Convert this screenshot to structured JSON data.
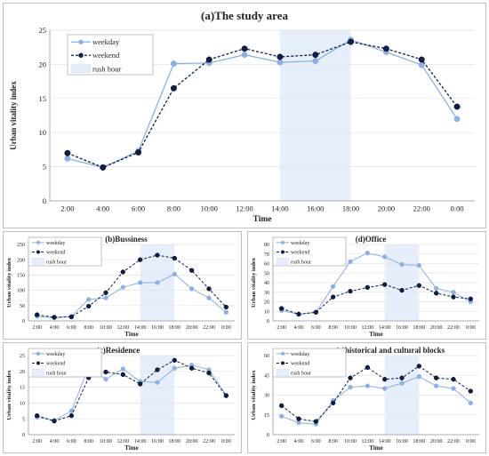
{
  "chart_data": [
    {
      "id": "a",
      "type": "line",
      "title": "(a)The study area",
      "xlabel": "Time",
      "ylabel": "Urban vitality index",
      "categories": [
        "2:00",
        "4:00",
        "6:00",
        "8:00",
        "10:00",
        "12:00",
        "14:00",
        "16:00",
        "18:00",
        "20:00",
        "22:00",
        "0:00"
      ],
      "yticks": [
        "0",
        "5",
        "10",
        "15",
        "20",
        "25"
      ],
      "ylim": [
        0,
        25
      ],
      "rush_hours": [
        [
          6.5,
          8.5
        ],
        [
          17.5,
          19.5
        ]
      ],
      "legend_position": "top-left",
      "rush_label": "rush hour",
      "grid": true,
      "series": [
        {
          "name": "weekday",
          "values": [
            6.2,
            4.9,
            7.3,
            20.1,
            20.2,
            21.4,
            20.3,
            20.5,
            23.6,
            21.8,
            19.9,
            12.0
          ]
        },
        {
          "name": "weekend",
          "values": [
            7.0,
            4.9,
            7.1,
            16.5,
            20.7,
            22.3,
            21.1,
            21.4,
            23.3,
            22.3,
            20.7,
            13.8
          ]
        }
      ]
    },
    {
      "id": "b",
      "type": "line",
      "title": "(b)Bussiness",
      "xlabel": "Time",
      "ylabel": "Urban vitality index",
      "categories": [
        "2:00",
        "4:00",
        "6:00",
        "8:00",
        "10:00",
        "12:00",
        "14:00",
        "16:00",
        "18:00",
        "20:00",
        "22:00",
        "0:00"
      ],
      "yticks": [
        "0",
        "50",
        "100",
        "150",
        "200",
        "250"
      ],
      "ylim": [
        0,
        250
      ],
      "rush_hours": [
        [
          6.5,
          8.5
        ],
        [
          17.5,
          19.5
        ]
      ],
      "legend_position": "top-left",
      "rush_label": "rush hour",
      "grid": true,
      "series": [
        {
          "name": "weekday",
          "values": [
            15,
            10,
            15,
            70,
            75,
            110,
            125,
            125,
            153,
            105,
            75,
            28
          ]
        },
        {
          "name": "weekend",
          "values": [
            20,
            12,
            13,
            48,
            92,
            160,
            200,
            215,
            205,
            165,
            105,
            45
          ]
        }
      ]
    },
    {
      "id": "d",
      "type": "line",
      "title": "(d)Office",
      "xlabel": "Time",
      "ylabel": "Urban vitality index",
      "categories": [
        "2:00",
        "4:00",
        "6:00",
        "8:00",
        "10:00",
        "12:00",
        "14:00",
        "16:00",
        "18:00",
        "20:00",
        "22:00",
        "0:00"
      ],
      "yticks": [
        "0",
        "10",
        "20",
        "30",
        "40",
        "50",
        "60",
        "70",
        "80"
      ],
      "ylim": [
        0,
        80
      ],
      "rush_hours": [
        [
          6.5,
          8.5
        ],
        [
          17.5,
          19.5
        ]
      ],
      "legend_position": "top-left",
      "rush_label": "rush hour",
      "grid": true,
      "series": [
        {
          "name": "weekday",
          "values": [
            11,
            7,
            9,
            36,
            62,
            71,
            67,
            59,
            58,
            34,
            30,
            20
          ]
        },
        {
          "name": "weekend",
          "values": [
            13,
            7,
            9,
            25,
            31,
            35,
            38,
            32,
            37,
            29,
            25,
            23
          ]
        }
      ]
    },
    {
      "id": "c",
      "type": "line",
      "title": "(c)Residence",
      "xlabel": "Time",
      "ylabel": "Urban vitality index",
      "categories": [
        "2:00",
        "4:00",
        "6:00",
        "8:00",
        "10:00",
        "12:00",
        "14:00",
        "16:00",
        "18:00",
        "20:00",
        "22:00",
        "0:00"
      ],
      "yticks": [
        "0",
        "5",
        "10",
        "15",
        "20",
        "25"
      ],
      "ylim": [
        0,
        25
      ],
      "rush_hours": [
        [
          6.5,
          8.5
        ],
        [
          17.5,
          19.5
        ]
      ],
      "legend_position": "top-left",
      "rush_label": "rush hour",
      "grid": true,
      "series": [
        {
          "name": "weekday",
          "values": [
            5.5,
            4.5,
            7.5,
            21.3,
            17.5,
            20.8,
            16.8,
            16.5,
            21.0,
            22.0,
            20.5,
            12.5
          ]
        },
        {
          "name": "weekend",
          "values": [
            6.0,
            4.3,
            6.0,
            18.0,
            19.8,
            19.0,
            16.0,
            20.5,
            23.5,
            21.0,
            19.5,
            12.3
          ]
        }
      ]
    },
    {
      "id": "e",
      "type": "line",
      "title": "(e)historical and cultural blocks",
      "xlabel": "Time",
      "ylabel": "Urban vitality index",
      "categories": [
        "2:00",
        "4:00",
        "6:00",
        "8:00",
        "10:00",
        "12:00",
        "14:00",
        "16:00",
        "18:00",
        "20:00",
        "22:00",
        "0:00"
      ],
      "yticks": [
        "0",
        "15",
        "30",
        "45",
        "60"
      ],
      "ylim": [
        0,
        60
      ],
      "rush_hours": [
        [
          6.5,
          8.5
        ],
        [
          17.5,
          19.5
        ]
      ],
      "legend_position": "top-left",
      "rush_label": "rush hour",
      "grid": true,
      "series": [
        {
          "name": "weekday",
          "values": [
            14,
            9,
            8,
            26,
            36,
            37,
            35,
            39,
            44,
            37,
            35,
            24
          ]
        },
        {
          "name": "weekend",
          "values": [
            22,
            12,
            10,
            24,
            43,
            51,
            42,
            43,
            52,
            43,
            42,
            33
          ]
        }
      ]
    }
  ],
  "colors": {
    "weekday": "#8fb0de",
    "weekend": "#0d1f4a",
    "rush_band": "#e6eefb",
    "grid": "#e3e3e3",
    "axis": "#9a9a9a"
  }
}
